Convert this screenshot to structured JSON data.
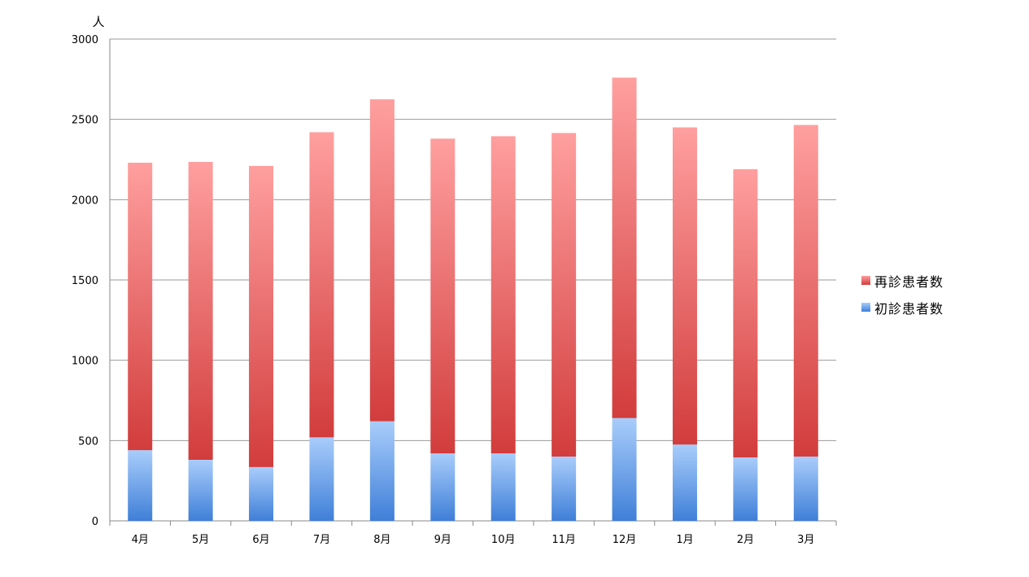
{
  "chart_data": {
    "type": "bar",
    "stacked": true,
    "ylabel": "人",
    "ylim": [
      0,
      3000
    ],
    "yticks": [
      0,
      500,
      1000,
      1500,
      2000,
      2500,
      3000
    ],
    "categories": [
      "4月",
      "5月",
      "6月",
      "7月",
      "8月",
      "9月",
      "10月",
      "11月",
      "12月",
      "1月",
      "2月",
      "3月"
    ],
    "series": [
      {
        "name": "初診患者数",
        "values": [
          440,
          380,
          335,
          520,
          620,
          420,
          420,
          400,
          640,
          475,
          395,
          400
        ],
        "color_top": "#a9cdfb",
        "color_bottom": "#3f7fd8"
      },
      {
        "name": "再診患者数",
        "values": [
          1790,
          1855,
          1875,
          1900,
          2005,
          1960,
          1975,
          2015,
          2120,
          1975,
          1795,
          2065
        ],
        "color_top": "#ff9f9f",
        "color_bottom": "#d23c3c"
      }
    ],
    "grid": true,
    "legend_position": "right",
    "legend_order": [
      "再診患者数",
      "初診患者数"
    ]
  }
}
